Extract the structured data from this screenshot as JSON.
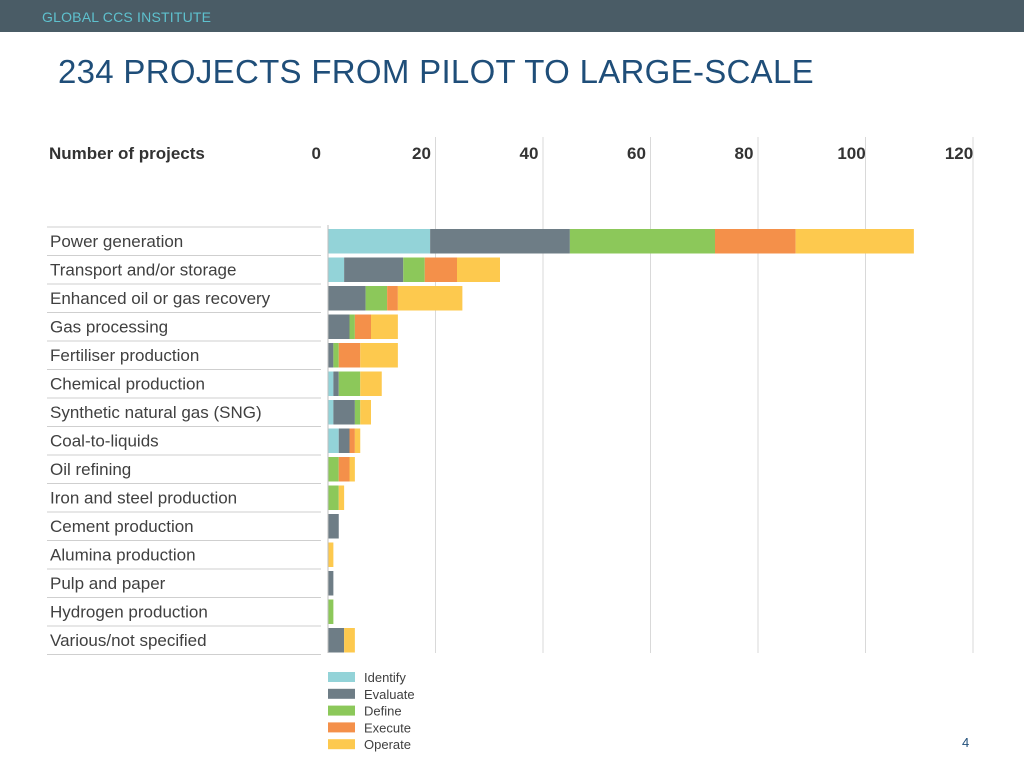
{
  "header": {
    "org": "GLOBAL CCS INSTITUTE"
  },
  "slide": {
    "title": "234 PROJECTS FROM PILOT TO LARGE-SCALE",
    "page_number": "4"
  },
  "colors": {
    "Identify": "#93d3d8",
    "Evaluate": "#6e7d86",
    "Define": "#8cc85a",
    "Execute": "#f4904a",
    "Operate": "#fdc94e",
    "header_bar": "#4a5c66",
    "title": "#1f4e79"
  },
  "chart_data": {
    "type": "bar",
    "orientation": "horizontal",
    "stacked": true,
    "xlabel": "Number of projects",
    "xlim": [
      0,
      120
    ],
    "xticks": [
      0,
      20,
      40,
      60,
      80,
      100,
      120
    ],
    "grid": true,
    "legend_position": "bottom",
    "categories": [
      "Power generation",
      "Transport and/or storage",
      "Enhanced oil or gas recovery",
      "Gas processing",
      "Fertiliser production",
      "Chemical production",
      "Synthetic natural gas (SNG)",
      "Coal-to-liquids",
      "Oil refining",
      "Iron and steel production",
      "Cement production",
      "Alumina production",
      "Pulp and paper",
      "Hydrogen production",
      "Various/not specified"
    ],
    "series": [
      {
        "name": "Identify",
        "values": [
          19,
          3,
          0,
          0,
          0,
          1,
          1,
          2,
          0,
          0,
          0,
          0,
          0,
          0,
          0
        ]
      },
      {
        "name": "Evaluate",
        "values": [
          26,
          11,
          7,
          4,
          1,
          1,
          4,
          2,
          0,
          0,
          2,
          0,
          1,
          0,
          3
        ]
      },
      {
        "name": "Define",
        "values": [
          27,
          4,
          4,
          1,
          1,
          4,
          1,
          0,
          2,
          2,
          0,
          0,
          0,
          1,
          0
        ]
      },
      {
        "name": "Execute",
        "values": [
          15,
          6,
          2,
          3,
          4,
          0,
          0,
          1,
          2,
          0,
          0,
          0,
          0,
          0,
          0
        ]
      },
      {
        "name": "Operate",
        "values": [
          22,
          8,
          12,
          5,
          7,
          4,
          2,
          1,
          1,
          1,
          0,
          1,
          0,
          0,
          2
        ]
      }
    ]
  }
}
